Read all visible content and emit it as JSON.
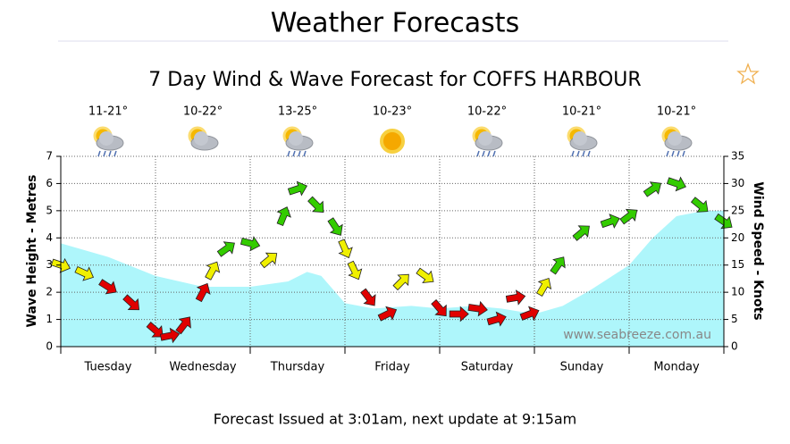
{
  "header": {
    "title": "Weather Forecasts"
  },
  "chart_data": {
    "type": "combo",
    "title": "7 Day Wind & Wave Forecast for COFFS HARBOUR",
    "categories": [
      "Tuesday",
      "Wednesday",
      "Thursday",
      "Friday",
      "Saturday",
      "Sunday",
      "Monday"
    ],
    "temperatures": [
      "11-21°",
      "10-22°",
      "13-25°",
      "10-23°",
      "10-22°",
      "10-21°",
      "10-21°"
    ],
    "xlim": [
      0,
      7
    ],
    "xticks": [
      0,
      1,
      2,
      3,
      4,
      5,
      6,
      7
    ],
    "ylim": [
      0,
      7
    ],
    "yticks": [
      0,
      1,
      2,
      3,
      4,
      5,
      6,
      7
    ],
    "y2lim": [
      0,
      35
    ],
    "y2ticks": [
      0,
      5,
      10,
      15,
      20,
      25,
      30,
      35
    ],
    "ylabel": "Wave Height - Metres",
    "y2label": "Wind Speed - Knots",
    "grid": true,
    "series": [
      {
        "type": "area",
        "color": "#aef6fb",
        "x": [
          0,
          0.5,
          1,
          1.5,
          2,
          2.4,
          2.6,
          2.75,
          3,
          3.3,
          3.7,
          4,
          4.35,
          4.65,
          5,
          5.3,
          5.6,
          6,
          6.25,
          6.5,
          6.8,
          7
        ],
        "values": [
          3.8,
          3.3,
          2.6,
          2.2,
          2.2,
          2.4,
          2.75,
          2.6,
          1.6,
          1.4,
          1.5,
          1.4,
          1.5,
          1.4,
          1.2,
          1.5,
          2.1,
          3.0,
          4.0,
          4.8,
          5.0,
          5.0
        ]
      },
      {
        "type": "arrows",
        "axis": "y2",
        "x": [
          0,
          0.25,
          0.5,
          0.75,
          1,
          1.15,
          1.3,
          1.5,
          1.6,
          1.75,
          2,
          2.2,
          2.35,
          2.5,
          2.7,
          2.9,
          3,
          3.1,
          3.25,
          3.45,
          3.6,
          3.85,
          4,
          4.2,
          4.4,
          4.6,
          4.8,
          4.95,
          5.1,
          5.25,
          5.5,
          5.8,
          6,
          6.25,
          6.5,
          6.75,
          7
        ],
        "values": [
          15,
          13.5,
          11,
          8,
          3,
          2,
          4,
          10,
          14,
          18,
          19,
          16,
          24,
          29,
          26,
          22,
          18,
          14,
          9,
          6,
          12,
          13,
          7,
          6,
          7,
          5,
          9,
          6,
          11,
          15,
          21,
          23,
          24,
          29,
          30,
          26,
          23
        ],
        "colors": [
          "#f0f000",
          "#f0f000",
          "#e00000",
          "#e00000",
          "#e00000",
          "#e00000",
          "#e00000",
          "#e00000",
          "#f0f000",
          "#33cc00",
          "#33cc00",
          "#f0f000",
          "#33cc00",
          "#33cc00",
          "#33cc00",
          "#33cc00",
          "#f0f000",
          "#f0f000",
          "#e00000",
          "#e00000",
          "#f0f000",
          "#f0f000",
          "#e00000",
          "#e00000",
          "#e00000",
          "#e00000",
          "#e00000",
          "#e00000",
          "#f0f000",
          "#33cc00",
          "#33cc00",
          "#33cc00",
          "#33cc00",
          "#33cc00",
          "#33cc00",
          "#33cc00",
          "#33cc00"
        ]
      }
    ],
    "watermark": "www.seabreeze.com.au"
  },
  "footer": {
    "text": "Forecast Issued at 3:01am, next update at 9:15am"
  }
}
